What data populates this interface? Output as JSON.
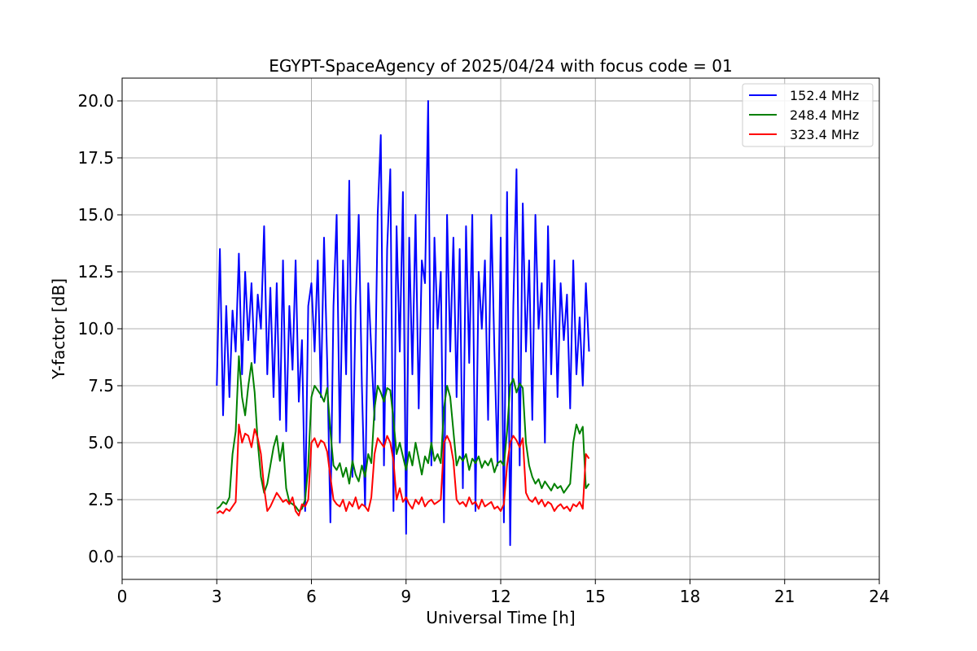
{
  "chart_data": {
    "type": "line",
    "title": "EGYPT-SpaceAgency of 2025/04/24 with focus code = 01",
    "xlabel": "Universal Time [h]",
    "ylabel": "Y-factor [dB]",
    "xlim": [
      0,
      24
    ],
    "ylim": [
      -1,
      21
    ],
    "xticks": [
      0,
      3,
      6,
      9,
      12,
      15,
      18,
      21,
      24
    ],
    "xtick_labels": [
      "0",
      "3",
      "6",
      "9",
      "12",
      "15",
      "18",
      "21",
      "24"
    ],
    "yticks": [
      0.0,
      2.5,
      5.0,
      7.5,
      10.0,
      12.5,
      15.0,
      17.5,
      20.0
    ],
    "ytick_labels": [
      "0.0",
      "2.5",
      "5.0",
      "7.5",
      "10.0",
      "12.5",
      "15.0",
      "17.5",
      "20.0"
    ],
    "grid": true,
    "legend_position": "top-right",
    "series": [
      {
        "name": "152.4 MHz",
        "color": "#0000ff",
        "x": [
          3.0,
          3.1,
          3.2,
          3.3,
          3.4,
          3.5,
          3.6,
          3.7,
          3.8,
          3.9,
          4.0,
          4.1,
          4.2,
          4.3,
          4.4,
          4.5,
          4.6,
          4.7,
          4.8,
          4.9,
          5.0,
          5.1,
          5.2,
          5.3,
          5.4,
          5.5,
          5.6,
          5.7,
          5.8,
          5.9,
          6.0,
          6.1,
          6.2,
          6.3,
          6.4,
          6.5,
          6.6,
          6.7,
          6.8,
          6.9,
          7.0,
          7.1,
          7.2,
          7.3,
          7.4,
          7.5,
          7.6,
          7.7,
          7.8,
          7.9,
          8.0,
          8.1,
          8.2,
          8.3,
          8.4,
          8.5,
          8.6,
          8.7,
          8.8,
          8.9,
          9.0,
          9.1,
          9.2,
          9.3,
          9.4,
          9.5,
          9.6,
          9.7,
          9.8,
          9.9,
          10.0,
          10.1,
          10.2,
          10.3,
          10.4,
          10.5,
          10.6,
          10.7,
          10.8,
          10.9,
          11.0,
          11.1,
          11.2,
          11.3,
          11.4,
          11.5,
          11.6,
          11.7,
          11.8,
          11.9,
          12.0,
          12.1,
          12.2,
          12.3,
          12.4,
          12.5,
          12.6,
          12.7,
          12.8,
          12.9,
          13.0,
          13.1,
          13.2,
          13.3,
          13.4,
          13.5,
          13.6,
          13.7,
          13.8,
          13.9,
          14.0,
          14.1,
          14.2,
          14.3,
          14.4,
          14.5,
          14.6,
          14.7,
          14.8
        ],
        "y": [
          7.5,
          13.5,
          6.2,
          11.0,
          7.0,
          10.8,
          9.0,
          13.3,
          8.0,
          12.5,
          9.5,
          12.0,
          8.5,
          11.5,
          10.0,
          14.5,
          8.0,
          11.8,
          7.0,
          12.0,
          6.0,
          13.0,
          5.5,
          11.0,
          8.2,
          13.0,
          6.8,
          9.5,
          2.0,
          11.0,
          12.0,
          9.0,
          13.0,
          7.0,
          14.0,
          8.5,
          1.5,
          11.0,
          15.0,
          5.0,
          13.0,
          8.0,
          16.5,
          3.5,
          11.0,
          15.0,
          7.5,
          2.2,
          12.0,
          9.0,
          6.0,
          15.0,
          18.5,
          4.0,
          13.5,
          17.0,
          2.0,
          14.5,
          9.0,
          16.0,
          1.0,
          14.0,
          8.0,
          15.0,
          6.5,
          13.0,
          12.0,
          20.0,
          4.0,
          14.0,
          10.0,
          12.5,
          1.5,
          15.0,
          9.0,
          14.0,
          7.0,
          13.5,
          3.0,
          14.5,
          8.5,
          15.0,
          2.0,
          12.5,
          10.0,
          13.0,
          6.0,
          15.0,
          9.0,
          4.0,
          14.0,
          1.5,
          16.0,
          0.5,
          11.0,
          17.0,
          4.0,
          15.5,
          9.0,
          13.0,
          6.0,
          15.0,
          10.0,
          12.0,
          5.0,
          14.5,
          8.0,
          13.0,
          7.0,
          12.0,
          9.5,
          11.5,
          6.5,
          13.0,
          8.0,
          10.5,
          7.5,
          12.0,
          9.0
        ]
      },
      {
        "name": "248.4 MHz",
        "color": "#008000",
        "x": [
          3.0,
          3.1,
          3.2,
          3.3,
          3.4,
          3.5,
          3.6,
          3.7,
          3.8,
          3.9,
          4.0,
          4.1,
          4.2,
          4.3,
          4.4,
          4.5,
          4.6,
          4.7,
          4.8,
          4.9,
          5.0,
          5.1,
          5.2,
          5.3,
          5.4,
          5.5,
          5.6,
          5.7,
          5.8,
          5.9,
          6.0,
          6.1,
          6.2,
          6.3,
          6.4,
          6.5,
          6.6,
          6.7,
          6.8,
          6.9,
          7.0,
          7.1,
          7.2,
          7.3,
          7.4,
          7.5,
          7.6,
          7.7,
          7.8,
          7.9,
          8.0,
          8.1,
          8.2,
          8.3,
          8.4,
          8.5,
          8.6,
          8.7,
          8.8,
          8.9,
          9.0,
          9.1,
          9.2,
          9.3,
          9.4,
          9.5,
          9.6,
          9.7,
          9.8,
          9.9,
          10.0,
          10.1,
          10.2,
          10.3,
          10.4,
          10.5,
          10.6,
          10.7,
          10.8,
          10.9,
          11.0,
          11.1,
          11.2,
          11.3,
          11.4,
          11.5,
          11.6,
          11.7,
          11.8,
          11.9,
          12.0,
          12.1,
          12.2,
          12.3,
          12.4,
          12.5,
          12.6,
          12.7,
          12.8,
          12.9,
          13.0,
          13.1,
          13.2,
          13.3,
          13.4,
          13.5,
          13.6,
          13.7,
          13.8,
          13.9,
          14.0,
          14.1,
          14.2,
          14.3,
          14.4,
          14.5,
          14.6,
          14.7,
          14.8
        ],
        "y": [
          2.1,
          2.2,
          2.4,
          2.3,
          2.6,
          4.5,
          5.5,
          8.8,
          7.0,
          6.2,
          7.5,
          8.5,
          7.2,
          5.0,
          3.5,
          2.8,
          3.2,
          4.0,
          4.8,
          5.3,
          4.2,
          5.0,
          3.0,
          2.4,
          2.3,
          2.2,
          2.0,
          2.1,
          2.5,
          4.0,
          7.0,
          7.5,
          7.3,
          7.1,
          6.8,
          7.4,
          5.5,
          4.0,
          3.8,
          4.1,
          3.5,
          3.9,
          3.2,
          4.2,
          3.6,
          3.3,
          4.0,
          3.5,
          4.5,
          4.1,
          6.5,
          7.5,
          7.2,
          6.8,
          7.4,
          7.3,
          6.0,
          4.5,
          5.0,
          4.4,
          3.8,
          4.6,
          4.0,
          5.0,
          4.3,
          3.6,
          4.4,
          4.1,
          5.0,
          4.2,
          4.5,
          4.1,
          6.5,
          7.5,
          7.0,
          5.5,
          4.0,
          4.4,
          4.2,
          4.5,
          3.8,
          4.3,
          4.1,
          4.4,
          3.9,
          4.2,
          4.0,
          4.3,
          3.7,
          4.1,
          4.2,
          4.0,
          5.5,
          7.5,
          7.8,
          7.2,
          7.6,
          7.4,
          5.0,
          4.0,
          3.5,
          3.2,
          3.4,
          3.0,
          3.3,
          3.1,
          2.9,
          3.2,
          3.0,
          3.1,
          2.8,
          3.0,
          3.2,
          5.0,
          5.8,
          5.4,
          5.7,
          3.0,
          3.2
        ]
      },
      {
        "name": "323.4 MHz",
        "color": "#ff0000",
        "x": [
          3.0,
          3.1,
          3.2,
          3.3,
          3.4,
          3.5,
          3.6,
          3.7,
          3.8,
          3.9,
          4.0,
          4.1,
          4.2,
          4.3,
          4.4,
          4.5,
          4.6,
          4.7,
          4.8,
          4.9,
          5.0,
          5.1,
          5.2,
          5.3,
          5.4,
          5.5,
          5.6,
          5.7,
          5.8,
          5.9,
          6.0,
          6.1,
          6.2,
          6.3,
          6.4,
          6.5,
          6.6,
          6.7,
          6.8,
          6.9,
          7.0,
          7.1,
          7.2,
          7.3,
          7.4,
          7.5,
          7.6,
          7.7,
          7.8,
          7.9,
          8.0,
          8.1,
          8.2,
          8.3,
          8.4,
          8.5,
          8.6,
          8.7,
          8.8,
          8.9,
          9.0,
          9.1,
          9.2,
          9.3,
          9.4,
          9.5,
          9.6,
          9.7,
          9.8,
          9.9,
          10.0,
          10.1,
          10.2,
          10.3,
          10.4,
          10.5,
          10.6,
          10.7,
          10.8,
          10.9,
          11.0,
          11.1,
          11.2,
          11.3,
          11.4,
          11.5,
          11.6,
          11.7,
          11.8,
          11.9,
          12.0,
          12.1,
          12.2,
          12.3,
          12.4,
          12.5,
          12.6,
          12.7,
          12.8,
          12.9,
          13.0,
          13.1,
          13.2,
          13.3,
          13.4,
          13.5,
          13.6,
          13.7,
          13.8,
          13.9,
          14.0,
          14.1,
          14.2,
          14.3,
          14.4,
          14.5,
          14.6,
          14.7,
          14.8
        ],
        "y": [
          1.9,
          2.0,
          1.9,
          2.1,
          2.0,
          2.2,
          2.4,
          5.8,
          5.0,
          5.4,
          5.3,
          4.8,
          5.6,
          5.2,
          4.5,
          3.0,
          2.0,
          2.2,
          2.5,
          2.8,
          2.6,
          2.4,
          2.5,
          2.3,
          2.6,
          2.0,
          1.8,
          2.3,
          2.2,
          2.5,
          5.0,
          5.2,
          4.8,
          5.1,
          5.0,
          4.6,
          3.5,
          2.5,
          2.3,
          2.2,
          2.5,
          2.0,
          2.4,
          2.2,
          2.6,
          2.1,
          2.3,
          2.2,
          2.0,
          2.6,
          4.5,
          5.2,
          5.0,
          4.8,
          5.3,
          5.0,
          4.2,
          2.5,
          3.0,
          2.4,
          2.6,
          2.3,
          2.1,
          2.5,
          2.3,
          2.6,
          2.2,
          2.4,
          2.5,
          2.3,
          2.4,
          2.5,
          5.0,
          5.3,
          5.0,
          4.2,
          2.5,
          2.3,
          2.4,
          2.2,
          2.6,
          2.3,
          2.4,
          2.1,
          2.5,
          2.2,
          2.3,
          2.4,
          2.1,
          2.2,
          2.0,
          2.3,
          4.0,
          5.0,
          5.3,
          5.1,
          4.8,
          5.2,
          2.8,
          2.5,
          2.4,
          2.6,
          2.3,
          2.5,
          2.2,
          2.4,
          2.3,
          2.0,
          2.2,
          2.3,
          2.1,
          2.2,
          2.0,
          2.3,
          2.2,
          2.4,
          2.1,
          4.5,
          4.3
        ]
      }
    ]
  }
}
